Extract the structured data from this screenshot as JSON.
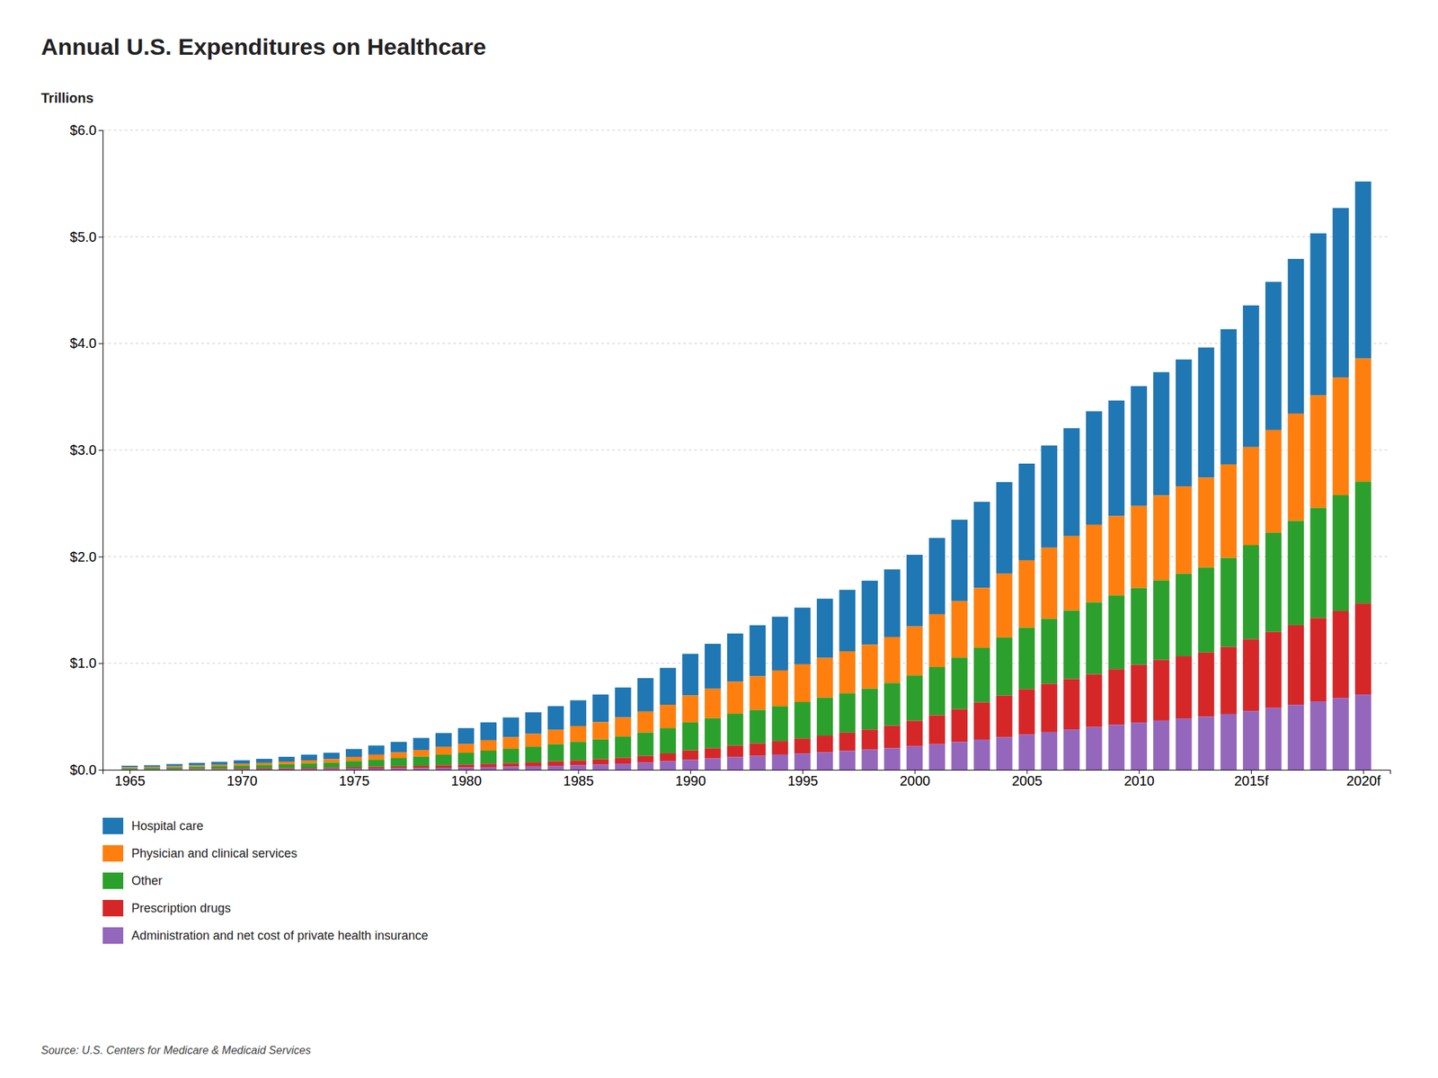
{
  "chart_data": {
    "type": "bar",
    "stacked": true,
    "grid": true,
    "title": "Annual U.S. Expenditures on Healthcare",
    "ylabel": "Trillions",
    "source": "Source: U.S. Centers for Medicare & Medicaid Services",
    "x": [
      1965,
      1966,
      1967,
      1968,
      1969,
      1970,
      1971,
      1972,
      1973,
      1974,
      1975,
      1976,
      1977,
      1978,
      1979,
      1980,
      1981,
      1982,
      1983,
      1984,
      1985,
      1986,
      1987,
      1988,
      1989,
      1990,
      1991,
      1992,
      1993,
      1994,
      1995,
      1996,
      1997,
      1998,
      1999,
      2000,
      2001,
      2002,
      2003,
      2004,
      2005,
      2006,
      2007,
      2008,
      2009,
      2010,
      2011,
      2012,
      2013,
      2014,
      2015,
      2016,
      2017,
      2018,
      2019,
      2020
    ],
    "xlim": [
      1963.8,
      2021.2
    ],
    "xticks": [
      1965,
      1970,
      1975,
      1980,
      1985,
      1990,
      1995,
      2000,
      2005,
      2010,
      {
        "value": 2015,
        "label": "2015f"
      },
      {
        "value": 2020,
        "label": "2020f"
      }
    ],
    "ylim": [
      0,
      6
    ],
    "yticks": [
      {
        "value": 0,
        "label": "$0.0"
      },
      {
        "value": 1,
        "label": "$1.0"
      },
      {
        "value": 2,
        "label": "$2.0"
      },
      {
        "value": 3,
        "label": "$3.0"
      },
      {
        "value": 4,
        "label": "$4.0"
      },
      {
        "value": 5,
        "label": "$5.0"
      },
      {
        "value": 6,
        "label": "$6.0"
      }
    ],
    "series": [
      {
        "name": "Hospital care",
        "values": [
          0.014,
          0.016,
          0.02,
          0.024,
          0.028,
          0.033,
          0.038,
          0.045,
          0.052,
          0.059,
          0.073,
          0.086,
          0.099,
          0.113,
          0.131,
          0.148,
          0.168,
          0.185,
          0.202,
          0.222,
          0.241,
          0.259,
          0.281,
          0.313,
          0.346,
          0.391,
          0.422,
          0.452,
          0.478,
          0.504,
          0.531,
          0.555,
          0.577,
          0.601,
          0.634,
          0.672,
          0.716,
          0.764,
          0.808,
          0.86,
          0.906,
          0.959,
          1.012,
          1.063,
          1.084,
          1.124,
          1.157,
          1.19,
          1.22,
          1.268,
          1.329,
          1.39,
          1.451,
          1.52,
          1.59,
          1.66
        ]
      },
      {
        "name": "Physician and clinical services",
        "values": [
          0.008,
          0.009,
          0.011,
          0.013,
          0.015,
          0.018,
          0.021,
          0.025,
          0.029,
          0.033,
          0.04,
          0.047,
          0.054,
          0.062,
          0.072,
          0.083,
          0.097,
          0.108,
          0.12,
          0.135,
          0.149,
          0.162,
          0.178,
          0.198,
          0.219,
          0.253,
          0.276,
          0.3,
          0.317,
          0.336,
          0.354,
          0.373,
          0.393,
          0.412,
          0.432,
          0.46,
          0.495,
          0.53,
          0.562,
          0.598,
          0.633,
          0.666,
          0.698,
          0.729,
          0.744,
          0.77,
          0.796,
          0.82,
          0.843,
          0.878,
          0.92,
          0.963,
          1.006,
          1.055,
          1.104,
          1.155
        ]
      },
      {
        "name": "Other",
        "values": [
          0.011,
          0.013,
          0.016,
          0.019,
          0.022,
          0.026,
          0.03,
          0.036,
          0.042,
          0.047,
          0.057,
          0.066,
          0.076,
          0.086,
          0.099,
          0.111,
          0.124,
          0.136,
          0.147,
          0.161,
          0.174,
          0.186,
          0.2,
          0.218,
          0.237,
          0.262,
          0.281,
          0.299,
          0.313,
          0.327,
          0.342,
          0.356,
          0.37,
          0.384,
          0.4,
          0.425,
          0.453,
          0.484,
          0.512,
          0.545,
          0.577,
          0.61,
          0.643,
          0.675,
          0.693,
          0.72,
          0.747,
          0.773,
          0.798,
          0.835,
          0.882,
          0.931,
          0.979,
          1.033,
          1.086,
          1.143
        ]
      },
      {
        "name": "Prescription drugs",
        "values": [
          0.003,
          0.003,
          0.004,
          0.005,
          0.006,
          0.007,
          0.008,
          0.009,
          0.011,
          0.012,
          0.014,
          0.016,
          0.018,
          0.021,
          0.024,
          0.027,
          0.03,
          0.033,
          0.037,
          0.041,
          0.045,
          0.05,
          0.056,
          0.064,
          0.074,
          0.087,
          0.096,
          0.107,
          0.117,
          0.127,
          0.141,
          0.156,
          0.171,
          0.188,
          0.211,
          0.239,
          0.271,
          0.307,
          0.349,
          0.39,
          0.426,
          0.453,
          0.473,
          0.495,
          0.521,
          0.543,
          0.567,
          0.585,
          0.601,
          0.631,
          0.674,
          0.713,
          0.747,
          0.782,
          0.817,
          0.854
        ]
      },
      {
        "name": "Administration and net cost of private health insurance",
        "values": [
          0.002,
          0.002,
          0.003,
          0.004,
          0.004,
          0.005,
          0.006,
          0.007,
          0.008,
          0.009,
          0.011,
          0.013,
          0.015,
          0.017,
          0.019,
          0.022,
          0.026,
          0.029,
          0.033,
          0.038,
          0.043,
          0.049,
          0.057,
          0.067,
          0.08,
          0.095,
          0.107,
          0.12,
          0.131,
          0.142,
          0.153,
          0.165,
          0.177,
          0.189,
          0.203,
          0.221,
          0.24,
          0.261,
          0.283,
          0.306,
          0.33,
          0.354,
          0.378,
          0.401,
          0.422,
          0.442,
          0.463,
          0.481,
          0.499,
          0.521,
          0.551,
          0.58,
          0.609,
          0.642,
          0.673,
          0.706
        ]
      }
    ]
  }
}
